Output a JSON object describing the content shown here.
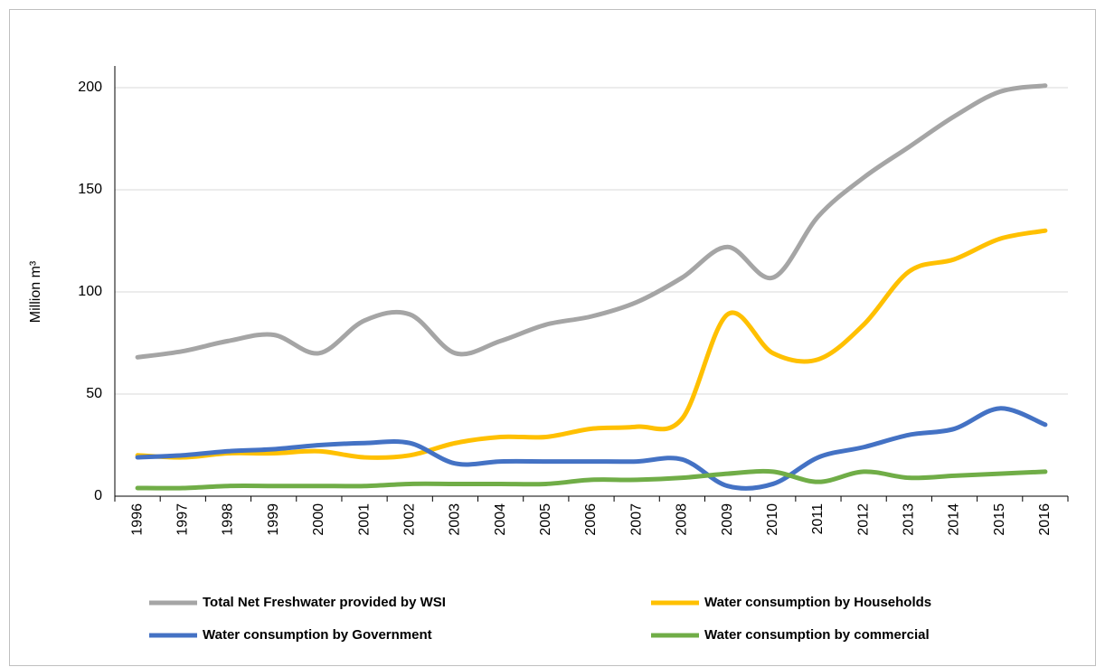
{
  "chart_data": {
    "type": "line",
    "y_label": "Million m³",
    "categories": [
      "1996",
      "1997",
      "1998",
      "1999",
      "2000",
      "2001",
      "2002",
      "2003",
      "2004",
      "2005",
      "2006",
      "2007",
      "2008",
      "2009",
      "2010",
      "2011",
      "2012",
      "2013",
      "2014",
      "2015",
      "2016"
    ],
    "series": [
      {
        "name": "Total Net Freshwater provided by WSI",
        "color": "#a5a5a5",
        "values": [
          68,
          71,
          76,
          79,
          70,
          86,
          89,
          70,
          76,
          84,
          88,
          95,
          107,
          122,
          107,
          137,
          156,
          171,
          186,
          198,
          201
        ]
      },
      {
        "name": "Water consumption by Households",
        "color": "#ffc000",
        "values": [
          20,
          19,
          21,
          21,
          22,
          19,
          20,
          26,
          29,
          29,
          33,
          34,
          38,
          89,
          70,
          67,
          84,
          110,
          116,
          126,
          130
        ]
      },
      {
        "name": "Water consumption by Government",
        "color": "#4472c4",
        "values": [
          19,
          20,
          22,
          23,
          25,
          26,
          26,
          16,
          17,
          17,
          17,
          17,
          18,
          5,
          6,
          19,
          24,
          30,
          33,
          43,
          35
        ]
      },
      {
        "name": "Water consumption by commercial",
        "color": "#70ad47",
        "values": [
          4,
          4,
          5,
          5,
          5,
          5,
          6,
          6,
          6,
          6,
          8,
          8,
          9,
          11,
          12,
          7,
          12,
          9,
          10,
          11,
          12
        ]
      }
    ],
    "ylim": [
      0,
      200
    ],
    "yticks": [
      0,
      50,
      100,
      150,
      200
    ],
    "grid": true
  }
}
